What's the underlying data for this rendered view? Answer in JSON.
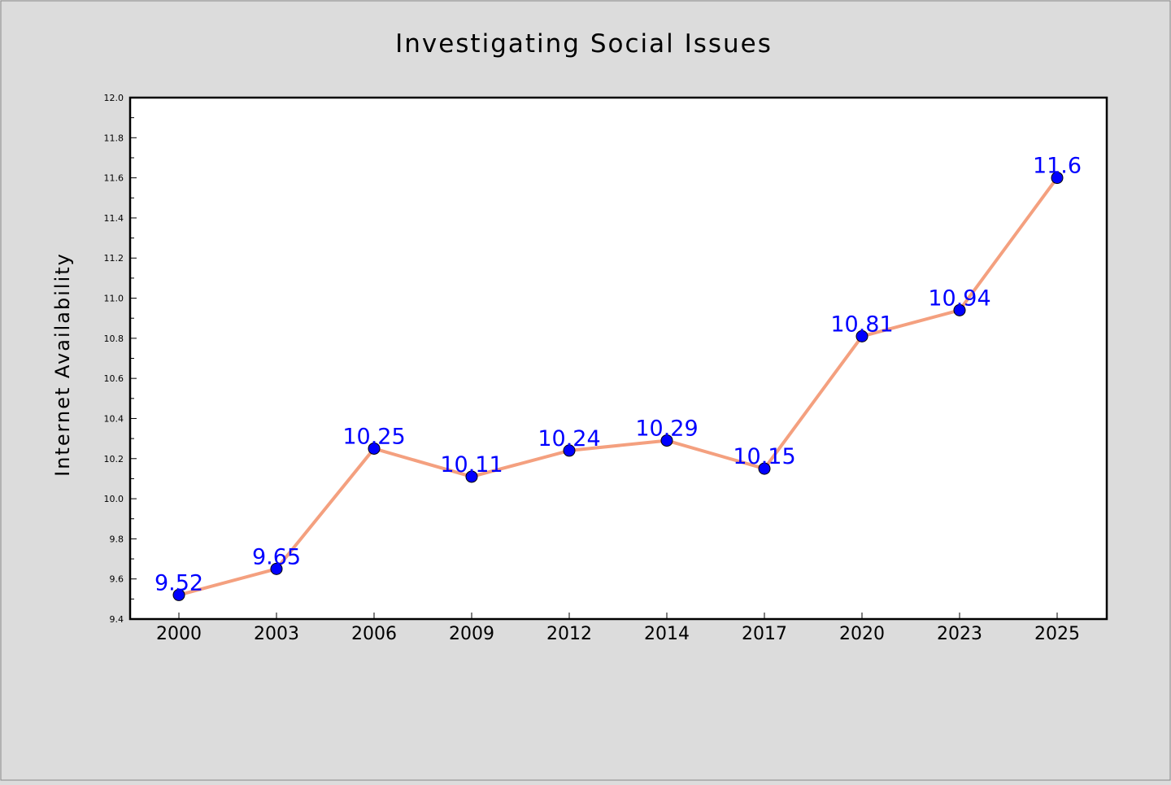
{
  "chart_data": {
    "type": "line",
    "title": "Investigating Social Issues",
    "xlabel": "",
    "ylabel": "Internet Availability",
    "categories": [
      "2000",
      "2003",
      "2006",
      "2009",
      "2012",
      "2014",
      "2017",
      "2020",
      "2023",
      "2025"
    ],
    "series": [
      {
        "values": [
          9.52,
          9.65,
          10.25,
          10.11,
          10.24,
          10.29,
          10.15,
          10.81,
          10.94,
          11.6
        ]
      }
    ],
    "data_labels": [
      "9.52",
      "9.65",
      "10.25",
      "10.11",
      "10.24",
      "10.29",
      "10.15",
      "10.81",
      "10.94",
      "11.6"
    ],
    "ylim": [
      9.4,
      12.0
    ],
    "yticks": [
      "9.4",
      "9.6",
      "9.8",
      "10.0",
      "10.2",
      "10.4",
      "10.6",
      "10.8",
      "11.0",
      "11.2",
      "11.4",
      "11.6",
      "11.8",
      "12.0"
    ],
    "grid": false,
    "legend": "none",
    "colors": {
      "background": "#dcdcdc",
      "plot_background": "#ffffff",
      "line": "#f4a07f",
      "marker": "#0000ff",
      "data_label": "#0000ff",
      "text": "#000000"
    }
  }
}
